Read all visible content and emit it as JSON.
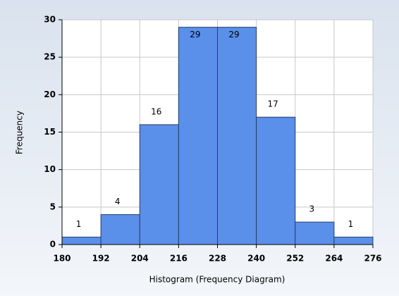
{
  "chart_data": {
    "type": "histogram",
    "bins": [
      180,
      192,
      204,
      216,
      228,
      240,
      252,
      264,
      276
    ],
    "values": [
      1,
      4,
      16,
      29,
      29,
      17,
      3,
      1
    ],
    "color": "#5a8fea",
    "xlabel": "Histogram (Frequency Diagram)",
    "ylabel": "Frequency",
    "xlim": [
      180,
      276
    ],
    "xticks": [
      180,
      192,
      204,
      216,
      228,
      240,
      252,
      264,
      276
    ],
    "ylim": [
      0,
      30
    ],
    "yticks": [
      0,
      5,
      10,
      15,
      20,
      25,
      30
    ],
    "grid": true
  }
}
